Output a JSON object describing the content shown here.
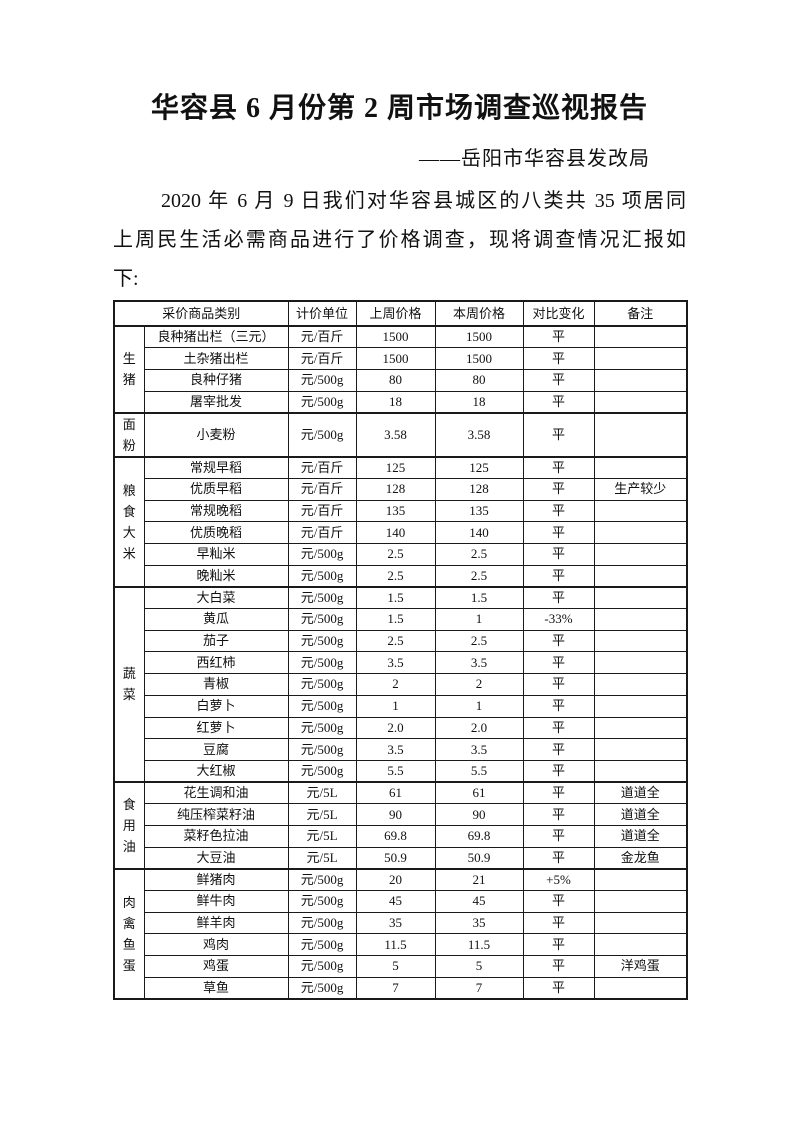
{
  "doc": {
    "title": "华容县 6 月份第 2 周市场调查巡视报告",
    "byline": "——岳阳市华容县发改局",
    "paragraph_lines": [
      "2020 年 6 月 9 日我们对华容县城区的八类共 35 项居同",
      "上周民生活必需商品进行了价格调查，现将调查情况汇报如",
      "下:"
    ]
  },
  "table": {
    "headers": [
      "采价商品类别",
      "计价单位",
      "上周价格",
      "本周价格",
      "对比变化",
      "备注"
    ],
    "groups": [
      {
        "category": "生猪",
        "rows": [
          {
            "item": "良种猪出栏（三元）",
            "unit": "元/百斤",
            "last_week": "1500",
            "this_week": "1500",
            "change": "平",
            "remark": ""
          },
          {
            "item": "土杂猪出栏",
            "unit": "元/百斤",
            "last_week": "1500",
            "this_week": "1500",
            "change": "平",
            "remark": ""
          },
          {
            "item": "良种仔猪",
            "unit": "元/500g",
            "last_week": "80",
            "this_week": "80",
            "change": "平",
            "remark": ""
          },
          {
            "item": "屠宰批发",
            "unit": "元/500g",
            "last_week": "18",
            "this_week": "18",
            "change": "平",
            "remark": ""
          }
        ]
      },
      {
        "category": "面粉",
        "rows": [
          {
            "item": "小麦粉",
            "unit": "元/500g",
            "last_week": "3.58",
            "this_week": "3.58",
            "change": "平",
            "remark": ""
          }
        ]
      },
      {
        "category": "粮食大米",
        "rows": [
          {
            "item": "常规早稻",
            "unit": "元/百斤",
            "last_week": "125",
            "this_week": "125",
            "change": "平",
            "remark": ""
          },
          {
            "item": "优质早稻",
            "unit": "元/百斤",
            "last_week": "128",
            "this_week": "128",
            "change": "平",
            "remark": "生产较少"
          },
          {
            "item": "常规晚稻",
            "unit": "元/百斤",
            "last_week": "135",
            "this_week": "135",
            "change": "平",
            "remark": ""
          },
          {
            "item": "优质晚稻",
            "unit": "元/百斤",
            "last_week": "140",
            "this_week": "140",
            "change": "平",
            "remark": ""
          },
          {
            "item": "早籼米",
            "unit": "元/500g",
            "last_week": "2.5",
            "this_week": "2.5",
            "change": "平",
            "remark": ""
          },
          {
            "item": "晚籼米",
            "unit": "元/500g",
            "last_week": "2.5",
            "this_week": "2.5",
            "change": "平",
            "remark": ""
          }
        ]
      },
      {
        "category": "蔬菜",
        "rows": [
          {
            "item": "大白菜",
            "unit": "元/500g",
            "last_week": "1.5",
            "this_week": "1.5",
            "change": "平",
            "remark": ""
          },
          {
            "item": "黄瓜",
            "unit": "元/500g",
            "last_week": "1.5",
            "this_week": "1",
            "change": "-33%",
            "remark": ""
          },
          {
            "item": "茄子",
            "unit": "元/500g",
            "last_week": "2.5",
            "this_week": "2.5",
            "change": "平",
            "remark": ""
          },
          {
            "item": "西红柿",
            "unit": "元/500g",
            "last_week": "3.5",
            "this_week": "3.5",
            "change": "平",
            "remark": ""
          },
          {
            "item": "青椒",
            "unit": "元/500g",
            "last_week": "2",
            "this_week": "2",
            "change": "平",
            "remark": ""
          },
          {
            "item": "白萝卜",
            "unit": "元/500g",
            "last_week": "1",
            "this_week": "1",
            "change": "平",
            "remark": ""
          },
          {
            "item": "红萝卜",
            "unit": "元/500g",
            "last_week": "2.0",
            "this_week": "2.0",
            "change": "平",
            "remark": ""
          },
          {
            "item": "豆腐",
            "unit": "元/500g",
            "last_week": "3.5",
            "this_week": "3.5",
            "change": "平",
            "remark": ""
          },
          {
            "item": "大红椒",
            "unit": "元/500g",
            "last_week": "5.5",
            "this_week": "5.5",
            "change": "平",
            "remark": ""
          }
        ]
      },
      {
        "category": "食用油",
        "rows": [
          {
            "item": "花生调和油",
            "unit": "元/5L",
            "last_week": "61",
            "this_week": "61",
            "change": "平",
            "remark": "道道全"
          },
          {
            "item": "纯压榨菜籽油",
            "unit": "元/5L",
            "last_week": "90",
            "this_week": "90",
            "change": "平",
            "remark": "道道全"
          },
          {
            "item": "菜籽色拉油",
            "unit": "元/5L",
            "last_week": "69.8",
            "this_week": "69.8",
            "change": "平",
            "remark": "道道全"
          },
          {
            "item": "大豆油",
            "unit": "元/5L",
            "last_week": "50.9",
            "this_week": "50.9",
            "change": "平",
            "remark": "金龙鱼"
          }
        ]
      },
      {
        "category": "肉禽鱼蛋",
        "rows": [
          {
            "item": "鲜猪肉",
            "unit": "元/500g",
            "last_week": "20",
            "this_week": "21",
            "change": "+5%",
            "remark": ""
          },
          {
            "item": "鲜牛肉",
            "unit": "元/500g",
            "last_week": "45",
            "this_week": "45",
            "change": "平",
            "remark": ""
          },
          {
            "item": "鲜羊肉",
            "unit": "元/500g",
            "last_week": "35",
            "this_week": "35",
            "change": "平",
            "remark": ""
          },
          {
            "item": "鸡肉",
            "unit": "元/500g",
            "last_week": "11.5",
            "this_week": "11.5",
            "change": "平",
            "remark": ""
          },
          {
            "item": "鸡蛋",
            "unit": "元/500g",
            "last_week": "5",
            "this_week": "5",
            "change": "平",
            "remark": "洋鸡蛋"
          },
          {
            "item": "草鱼",
            "unit": "元/500g",
            "last_week": "7",
            "this_week": "7",
            "change": "平",
            "remark": ""
          }
        ]
      }
    ]
  }
}
